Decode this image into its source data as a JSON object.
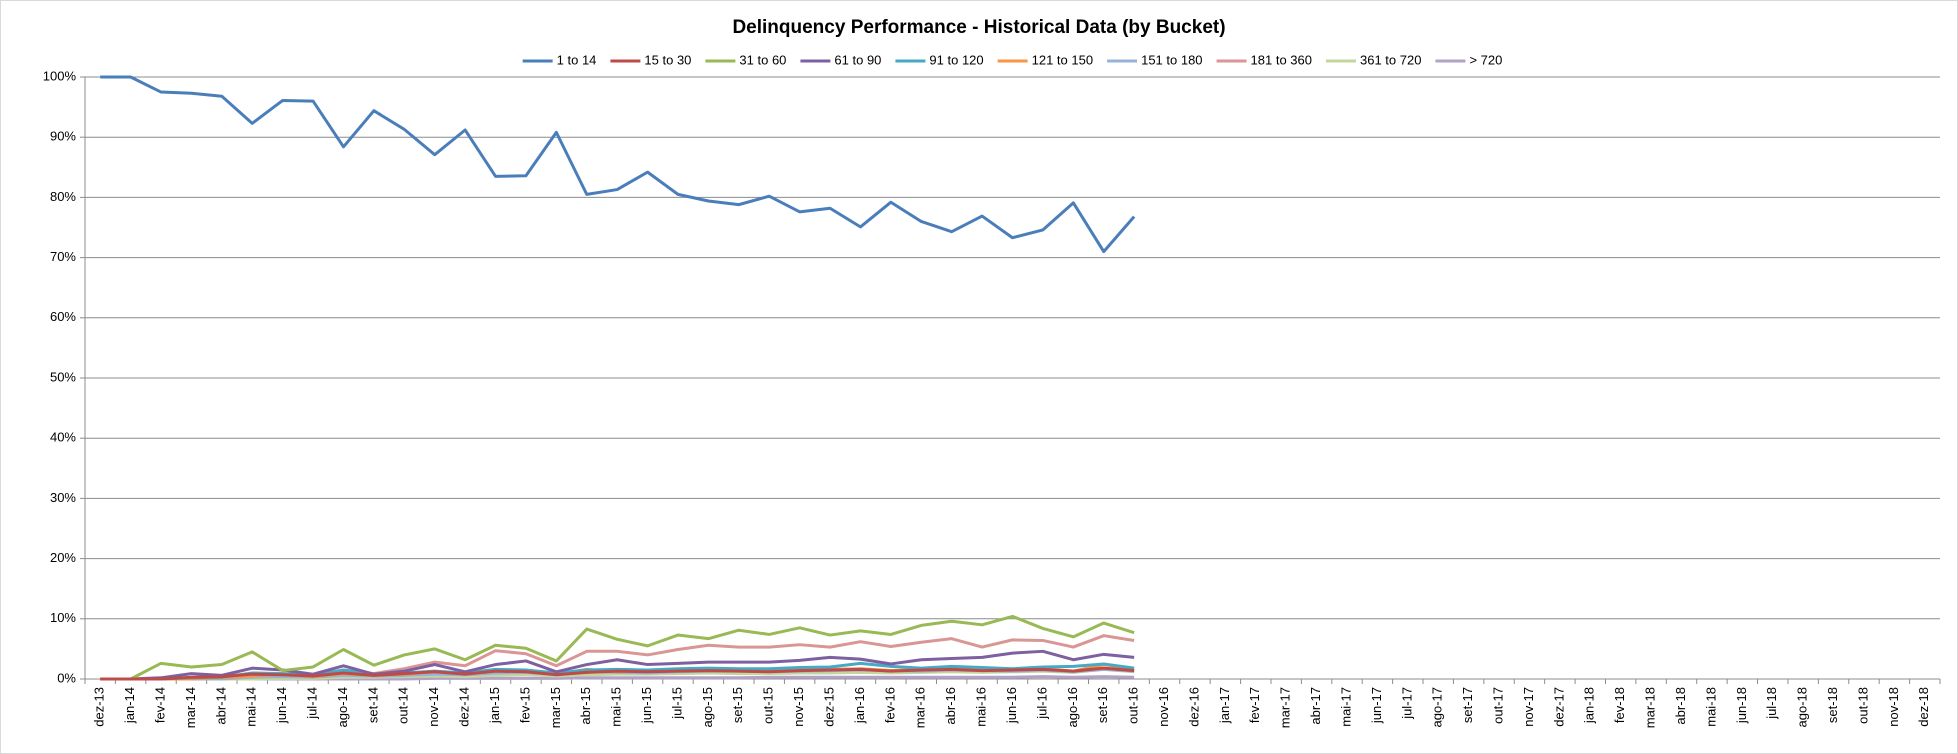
{
  "chart_data": {
    "type": "line",
    "title": "Delinquency Performance - Historical Data (by Bucket)",
    "categories": [
      "dez-13",
      "jan-14",
      "fev-14",
      "mar-14",
      "abr-14",
      "mai-14",
      "jun-14",
      "jul-14",
      "ago-14",
      "set-14",
      "out-14",
      "nov-14",
      "dez-14",
      "jan-15",
      "fev-15",
      "mar-15",
      "abr-15",
      "mai-15",
      "jun-15",
      "jul-15",
      "ago-15",
      "set-15",
      "out-15",
      "nov-15",
      "dez-15",
      "jan-16",
      "fev-16",
      "mar-16",
      "abr-16",
      "mai-16",
      "jun-16",
      "jul-16",
      "ago-16",
      "set-16",
      "out-16",
      "nov-16",
      "dez-16",
      "jan-17",
      "fev-17",
      "mar-17",
      "abr-17",
      "mai-17",
      "jun-17",
      "jul-17",
      "ago-17",
      "set-17",
      "out-17",
      "nov-17",
      "dez-17",
      "jan-18",
      "fev-18",
      "mar-18",
      "abr-18",
      "mai-18",
      "jun-18",
      "jul-18",
      "ago-18",
      "set-18",
      "out-18",
      "nov-18",
      "dez-18"
    ],
    "ylim": [
      0,
      100
    ],
    "yticks": [
      {
        "value": 0,
        "label": "0%"
      },
      {
        "value": 10,
        "label": "10%"
      },
      {
        "value": 20,
        "label": "20%"
      },
      {
        "value": 30,
        "label": "30%"
      },
      {
        "value": 40,
        "label": "40%"
      },
      {
        "value": 50,
        "label": "50%"
      },
      {
        "value": 60,
        "label": "60%"
      },
      {
        "value": 70,
        "label": "70%"
      },
      {
        "value": 80,
        "label": "80%"
      },
      {
        "value": 90,
        "label": "90%"
      },
      {
        "value": 100,
        "label": "100%"
      }
    ],
    "grid": true,
    "legend": "top",
    "series": [
      {
        "name": "1 to 14",
        "color": "#4a7ebb",
        "values": [
          100,
          100,
          97.5,
          97.3,
          96.8,
          92.3,
          96.1,
          96.0,
          88.4,
          94.4,
          91.3,
          87.1,
          91.2,
          83.5,
          83.6,
          90.8,
          80.5,
          81.3,
          84.2,
          80.5,
          79.4,
          78.8,
          80.2,
          77.6,
          78.2,
          75.1,
          79.2,
          76.0,
          74.3,
          76.9,
          73.3,
          74.6,
          79.1,
          71.0,
          76.8,
          null,
          null,
          null,
          null,
          null,
          null,
          null,
          null,
          null,
          null,
          null,
          null,
          null,
          null,
          null,
          null,
          null,
          null,
          null,
          null,
          null,
          null,
          null,
          null,
          null,
          null
        ]
      },
      {
        "name": "15 to 30",
        "color": "#be4b48",
        "values": [
          0,
          0,
          0,
          0.3,
          0.4,
          0.8,
          0.7,
          0.5,
          1.0,
          0.6,
          0.9,
          1.2,
          0.8,
          1.3,
          1.2,
          0.7,
          1.1,
          1.3,
          1.2,
          1.3,
          1.4,
          1.3,
          1.2,
          1.4,
          1.5,
          1.6,
          1.3,
          1.5,
          1.6,
          1.4,
          1.5,
          1.6,
          1.3,
          1.8,
          1.4,
          null,
          null,
          null,
          null,
          null,
          null,
          null,
          null,
          null,
          null,
          null,
          null,
          null,
          null,
          null,
          null,
          null,
          null,
          null,
          null,
          null,
          null,
          null,
          null,
          null,
          null
        ]
      },
      {
        "name": "31 to 60",
        "color": "#98b954",
        "values": [
          0,
          0,
          2.6,
          2.0,
          2.4,
          4.5,
          1.4,
          2.0,
          4.9,
          2.3,
          4.0,
          5.0,
          3.2,
          5.6,
          5.1,
          3.0,
          8.3,
          6.6,
          5.5,
          7.3,
          6.7,
          8.1,
          7.4,
          8.5,
          7.3,
          8.0,
          7.4,
          8.9,
          9.6,
          9.0,
          10.4,
          8.4,
          7.0,
          9.3,
          7.7,
          null,
          null,
          null,
          null,
          null,
          null,
          null,
          null,
          null,
          null,
          null,
          null,
          null,
          null,
          null,
          null,
          null,
          null,
          null,
          null,
          null,
          null,
          null,
          null,
          null,
          null
        ]
      },
      {
        "name": "61 to 90",
        "color": "#7d60a0",
        "values": [
          0,
          0,
          0.2,
          0.9,
          0.6,
          1.8,
          1.5,
          0.8,
          2.2,
          0.8,
          1.3,
          2.4,
          1.2,
          2.4,
          3.0,
          1.2,
          2.4,
          3.2,
          2.4,
          2.6,
          2.8,
          2.8,
          2.8,
          3.1,
          3.6,
          3.3,
          2.5,
          3.2,
          3.4,
          3.6,
          4.3,
          4.6,
          3.2,
          4.1,
          3.6,
          null,
          null,
          null,
          null,
          null,
          null,
          null,
          null,
          null,
          null,
          null,
          null,
          null,
          null,
          null,
          null,
          null,
          null,
          null,
          null,
          null,
          null,
          null,
          null,
          null,
          null
        ]
      },
      {
        "name": "91 to 120",
        "color": "#46aac5",
        "values": [
          0,
          0,
          0,
          0.2,
          0.3,
          1.0,
          0.9,
          0.6,
          1.5,
          0.8,
          1.0,
          1.3,
          1.0,
          1.6,
          1.5,
          1.0,
          1.5,
          1.6,
          1.5,
          1.7,
          1.8,
          1.7,
          1.7,
          1.9,
          2.0,
          2.6,
          2.1,
          1.8,
          2.1,
          1.9,
          1.7,
          2.0,
          2.1,
          2.5,
          1.8,
          null,
          null,
          null,
          null,
          null,
          null,
          null,
          null,
          null,
          null,
          null,
          null,
          null,
          null,
          null,
          null,
          null,
          null,
          null,
          null,
          null,
          null,
          null,
          null,
          null,
          null
        ]
      },
      {
        "name": "121 to 150",
        "color": "#f79646",
        "values": [
          0,
          0,
          0,
          0,
          0.2,
          0.5,
          0.8,
          0.4,
          0.9,
          0.6,
          0.8,
          1.2,
          0.9,
          1.5,
          1.3,
          0.8,
          1.6,
          1.2,
          1.3,
          1.5,
          1.6,
          1.4,
          1.3,
          1.5,
          1.6,
          1.7,
          1.4,
          1.6,
          1.7,
          1.5,
          1.6,
          1.7,
          1.3,
          2.4,
          1.6,
          null,
          null,
          null,
          null,
          null,
          null,
          null,
          null,
          null,
          null,
          null,
          null,
          null,
          null,
          null,
          null,
          null,
          null,
          null,
          null,
          null,
          null,
          null,
          null,
          null,
          null
        ]
      },
      {
        "name": "151 to 180",
        "color": "#95b3d7",
        "values": [
          0,
          0,
          0,
          0,
          0,
          0.3,
          0.4,
          0.3,
          0.6,
          0.5,
          0.6,
          0.8,
          0.7,
          1.0,
          1.1,
          0.7,
          1.2,
          1.1,
          1.0,
          1.2,
          1.3,
          1.3,
          1.2,
          1.3,
          1.4,
          1.5,
          1.4,
          1.3,
          1.5,
          1.4,
          1.3,
          1.5,
          1.2,
          1.6,
          1.3,
          null,
          null,
          null,
          null,
          null,
          null,
          null,
          null,
          null,
          null,
          null,
          null,
          null,
          null,
          null,
          null,
          null,
          null,
          null,
          null,
          null,
          null,
          null,
          null,
          null,
          null
        ]
      },
      {
        "name": "181 to 360",
        "color": "#d99694",
        "values": [
          0,
          0,
          0,
          0,
          0.3,
          0.8,
          0.9,
          0.6,
          1.5,
          0.9,
          1.7,
          2.8,
          2.2,
          4.7,
          4.2,
          2.2,
          4.6,
          4.6,
          4.0,
          4.9,
          5.6,
          5.3,
          5.3,
          5.7,
          5.3,
          6.2,
          5.4,
          6.1,
          6.7,
          5.3,
          6.5,
          6.4,
          5.3,
          7.2,
          6.4,
          null,
          null,
          null,
          null,
          null,
          null,
          null,
          null,
          null,
          null,
          null,
          null,
          null,
          null,
          null,
          null,
          null,
          null,
          null,
          null,
          null,
          null,
          null,
          null,
          null,
          null
        ]
      },
      {
        "name": "361 to 720",
        "color": "#c3d69b",
        "values": [
          0,
          0,
          0,
          0,
          0,
          0,
          0.1,
          0.1,
          0.3,
          0.3,
          0.4,
          0.5,
          0.4,
          0.6,
          0.7,
          0.5,
          0.7,
          0.8,
          0.8,
          0.9,
          1.0,
          0.9,
          0.9,
          1.0,
          1.0,
          1.1,
          1.0,
          1.1,
          1.2,
          1.1,
          1.2,
          1.3,
          1.1,
          1.6,
          1.2,
          null,
          null,
          null,
          null,
          null,
          null,
          null,
          null,
          null,
          null,
          null,
          null,
          null,
          null,
          null,
          null,
          null,
          null,
          null,
          null,
          null,
          null,
          null,
          null,
          null,
          null
        ]
      },
      {
        "name": "> 720",
        "color": "#b3a2c7",
        "values": [
          0,
          0,
          0,
          0,
          0,
          0,
          0,
          0,
          0,
          0,
          0,
          0.1,
          0.1,
          0.1,
          0.1,
          0.1,
          0.2,
          0.2,
          0.2,
          0.2,
          0.2,
          0.2,
          0.3,
          0.3,
          0.3,
          0.3,
          0.3,
          0.3,
          0.3,
          0.3,
          0.3,
          0.4,
          0.3,
          0.4,
          0.3,
          null,
          null,
          null,
          null,
          null,
          null,
          null,
          null,
          null,
          null,
          null,
          null,
          null,
          null,
          null,
          null,
          null,
          null,
          null,
          null,
          null,
          null,
          null,
          null,
          null,
          null
        ]
      }
    ]
  }
}
